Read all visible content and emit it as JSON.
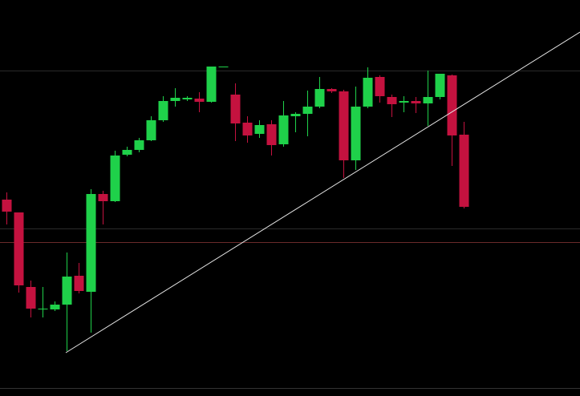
{
  "chart_data": {
    "type": "candlestick",
    "up_color": "#1fd14a",
    "down_color": "#c4123f",
    "ylim": [
      0,
      494
    ],
    "open": [
      245,
      229,
      136,
      108,
      108,
      114,
      150,
      130,
      252,
      243,
      301,
      307,
      319,
      344,
      368,
      370,
      371,
      367,
      410,
      376,
      341,
      327,
      339,
      314,
      349,
      352,
      361,
      383,
      380,
      294,
      361,
      398,
      373,
      366,
      368,
      365,
      373,
      400,
      326
    ],
    "high": [
      254,
      229,
      144,
      136,
      118,
      179,
      166,
      258,
      256,
      306,
      311,
      322,
      349,
      374,
      384,
      374,
      379,
      411,
      411,
      390,
      349,
      344,
      344,
      368,
      354,
      381,
      398,
      384,
      382,
      386,
      410,
      400,
      376,
      374,
      373,
      406,
      402,
      401,
      342
    ],
    "low": [
      214,
      129,
      98,
      98,
      106,
      56,
      128,
      79,
      214,
      242,
      299,
      304,
      318,
      342,
      361,
      368,
      354,
      366,
      410,
      318,
      316,
      322,
      300,
      311,
      329,
      324,
      359,
      378,
      272,
      282,
      359,
      366,
      348,
      354,
      353,
      337,
      370,
      287,
      234
    ],
    "close": [
      230,
      138,
      109,
      109,
      114,
      149,
      131,
      252,
      243,
      300,
      307,
      319,
      344,
      368,
      372,
      372,
      367,
      411,
      411,
      340,
      325,
      338,
      313,
      350,
      352,
      361,
      383,
      380,
      294,
      361,
      397,
      374,
      364,
      368,
      365,
      373,
      402,
      325,
      236
    ]
  }
}
